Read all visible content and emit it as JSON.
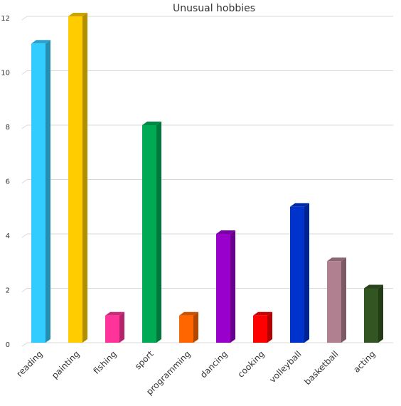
{
  "chart_data": {
    "type": "bar3d",
    "title": "Unusual hobbies",
    "categories": [
      "reading",
      "painting",
      "fishing",
      "sport",
      "programming",
      "dancing",
      "cooking",
      "volleyball",
      "basketball",
      "acting"
    ],
    "values": [
      11,
      12,
      1,
      8,
      1,
      4,
      1,
      5,
      3,
      2
    ],
    "colors": [
      "#33ccff",
      "#ffcc00",
      "#ff3399",
      "#00aa55",
      "#ff6600",
      "#9900cc",
      "#ff0000",
      "#0033cc",
      "#b08090",
      "#335522"
    ],
    "ylim": [
      0,
      12
    ],
    "yticks": [
      0,
      2,
      4,
      6,
      8,
      10,
      12
    ],
    "grid": true
  }
}
